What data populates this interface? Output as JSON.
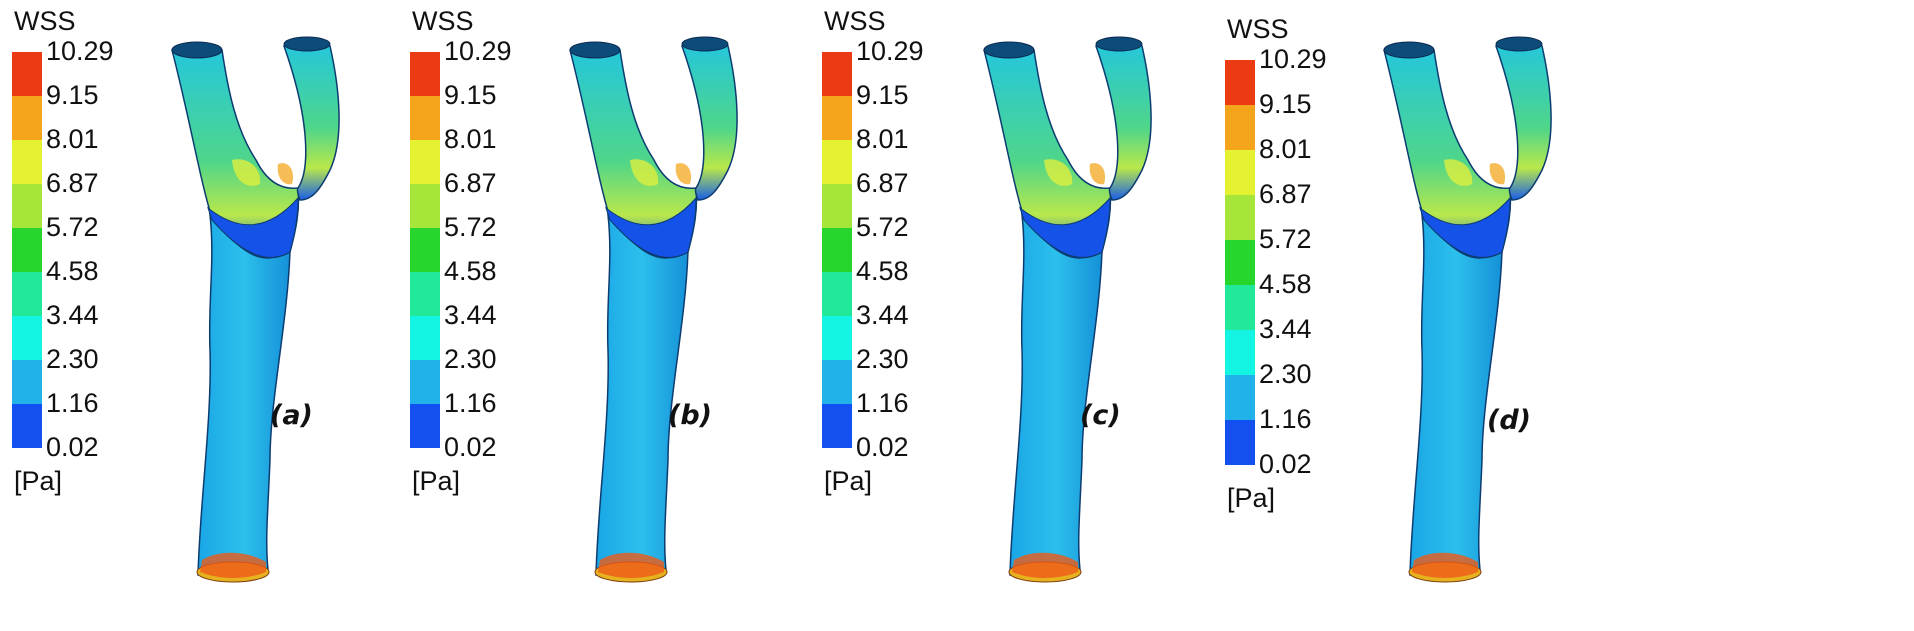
{
  "legend": {
    "title": "WSS",
    "unit": "[Pa]",
    "ticks": [
      "10.29",
      "9.15",
      "8.01",
      "6.87",
      "5.72",
      "4.58",
      "3.44",
      "2.30",
      "1.16",
      "0.02"
    ],
    "colors": [
      "#ec3b12",
      "#f5a51c",
      "#e4f232",
      "#a6e63a",
      "#27d62c",
      "#22e89a",
      "#13f4e2",
      "#22b2ea",
      "#1450f0"
    ]
  },
  "panels": [
    {
      "label": "(a)"
    },
    {
      "label": "(b)"
    },
    {
      "label": "(c)"
    },
    {
      "label": "(d)"
    }
  ]
}
